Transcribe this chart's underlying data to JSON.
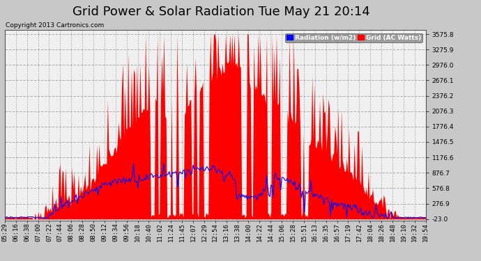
{
  "title": "Grid Power & Solar Radiation Tue May 21 20:14",
  "copyright": "Copyright 2013 Cartronics.com",
  "legend_labels": [
    "Radiation (w/m2)",
    "Grid (AC Watts)"
  ],
  "legend_colors": [
    "#0000ff",
    "#ff0000"
  ],
  "bg_color": "#c8c8c8",
  "plot_bg_color": "#f0f0f0",
  "grid_color": "#aaaaaa",
  "yticks": [
    -23.0,
    276.9,
    576.8,
    876.7,
    1176.6,
    1476.5,
    1776.4,
    2076.3,
    2376.2,
    2676.1,
    2976.0,
    3275.9,
    3575.8
  ],
  "ymin": -23.0,
  "ymax": 3575.8,
  "x_labels": [
    "05:29",
    "06:16",
    "06:38",
    "07:00",
    "07:22",
    "07:44",
    "08:06",
    "08:28",
    "08:50",
    "09:12",
    "09:34",
    "09:56",
    "10:18",
    "10:40",
    "11:02",
    "11:24",
    "11:45",
    "12:07",
    "12:29",
    "12:54",
    "13:16",
    "13:38",
    "14:00",
    "14:22",
    "14:44",
    "15:06",
    "15:28",
    "15:51",
    "16:13",
    "16:35",
    "16:57",
    "17:19",
    "17:42",
    "18:04",
    "18:26",
    "18:48",
    "19:10",
    "19:32",
    "19:54"
  ],
  "title_fontsize": 13,
  "copyright_fontsize": 6.5,
  "tick_fontsize": 6.5,
  "title_color": "#000000",
  "axis_color": "#000000",
  "red_color": "#ff0000",
  "blue_color": "#0000ff"
}
